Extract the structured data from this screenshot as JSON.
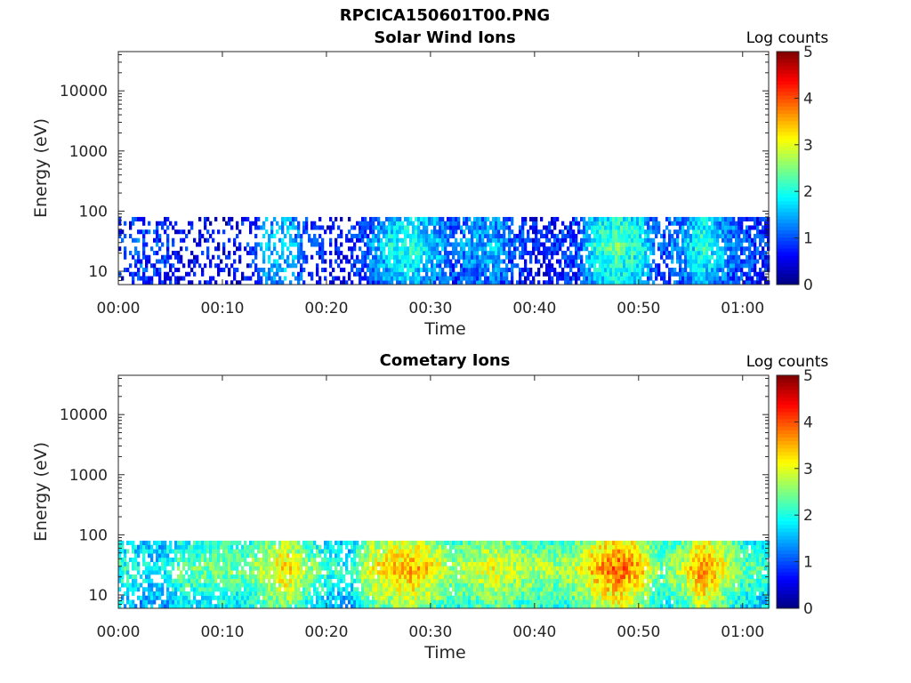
{
  "figure_title": "RPCICA150601T00.PNG",
  "chart_data": [
    {
      "type": "heatmap",
      "title": "Solar Wind Ions",
      "xlabel": "Time",
      "ylabel": "Energy (eV)",
      "x_ticks": [
        "00:00",
        "00:10",
        "00:20",
        "00:30",
        "00:40",
        "00:50",
        "01:00"
      ],
      "x_range_minutes": [
        0,
        62.5
      ],
      "y_scale": "log",
      "y_ticks": [
        10,
        100,
        1000,
        10000
      ],
      "y_range": [
        6,
        45000
      ],
      "data_energy_range": [
        6,
        80
      ],
      "colorbar": {
        "label": "Log counts",
        "ticks": [
          0,
          1,
          2,
          3,
          4,
          5
        ],
        "range": [
          0,
          5
        ],
        "colormap": "jet"
      },
      "intensity_profile": {
        "time_minutes": [
          0,
          2,
          4,
          6,
          8,
          10,
          12,
          14,
          16,
          18,
          20,
          22,
          24,
          26,
          28,
          30,
          32,
          34,
          36,
          38,
          40,
          42,
          44,
          46,
          48,
          50,
          52,
          54,
          56,
          58,
          60,
          62
        ],
        "mean_log_counts": [
          0.6,
          0.9,
          0.8,
          0.5,
          0.6,
          0.5,
          0.6,
          1.3,
          1.5,
          0.8,
          0.6,
          0.6,
          1.0,
          1.6,
          1.7,
          1.4,
          1.0,
          1.2,
          1.3,
          0.9,
          0.6,
          0.7,
          0.9,
          1.8,
          2.0,
          1.7,
          0.8,
          1.2,
          1.8,
          1.3,
          0.9,
          0.7
        ],
        "coverage": [
          0.3,
          0.5,
          0.5,
          0.3,
          0.3,
          0.3,
          0.3,
          0.6,
          0.6,
          0.4,
          0.3,
          0.5,
          0.8,
          0.9,
          0.9,
          0.9,
          0.8,
          0.9,
          0.9,
          0.7,
          0.6,
          0.6,
          0.8,
          1.0,
          1.0,
          1.0,
          0.5,
          0.9,
          1.0,
          0.9,
          0.8,
          0.8
        ]
      }
    },
    {
      "type": "heatmap",
      "title": "Cometary Ions",
      "xlabel": "Time",
      "ylabel": "Energy (eV)",
      "x_ticks": [
        "00:00",
        "00:10",
        "00:20",
        "00:30",
        "00:40",
        "00:50",
        "01:00"
      ],
      "x_range_minutes": [
        0,
        62.5
      ],
      "y_scale": "log",
      "y_ticks": [
        10,
        100,
        1000,
        10000
      ],
      "y_range": [
        6,
        45000
      ],
      "data_energy_range": [
        6,
        80
      ],
      "colorbar": {
        "label": "Log counts",
        "ticks": [
          0,
          1,
          2,
          3,
          4,
          5
        ],
        "range": [
          0,
          5
        ],
        "colormap": "jet"
      },
      "intensity_profile": {
        "time_minutes": [
          0,
          2,
          4,
          6,
          8,
          10,
          12,
          14,
          16,
          18,
          20,
          22,
          24,
          26,
          28,
          30,
          32,
          34,
          36,
          38,
          40,
          42,
          44,
          46,
          48,
          50,
          52,
          54,
          56,
          58,
          60,
          62
        ],
        "mean_log_counts": [
          1.8,
          1.6,
          1.5,
          2.0,
          2.0,
          2.1,
          2.0,
          2.4,
          2.8,
          2.2,
          1.8,
          1.6,
          2.6,
          2.8,
          3.0,
          2.7,
          2.2,
          2.4,
          2.6,
          2.4,
          2.3,
          2.2,
          2.4,
          3.0,
          3.3,
          2.9,
          2.0,
          2.4,
          3.2,
          2.6,
          2.0,
          1.8
        ],
        "coverage": [
          0.7,
          0.7,
          0.7,
          0.9,
          0.9,
          0.9,
          0.9,
          0.9,
          0.95,
          0.9,
          0.8,
          0.8,
          0.95,
          1.0,
          1.0,
          1.0,
          0.95,
          1.0,
          1.0,
          1.0,
          1.0,
          1.0,
          1.0,
          1.0,
          1.0,
          1.0,
          0.9,
          1.0,
          1.0,
          1.0,
          0.95,
          0.95
        ]
      }
    }
  ]
}
